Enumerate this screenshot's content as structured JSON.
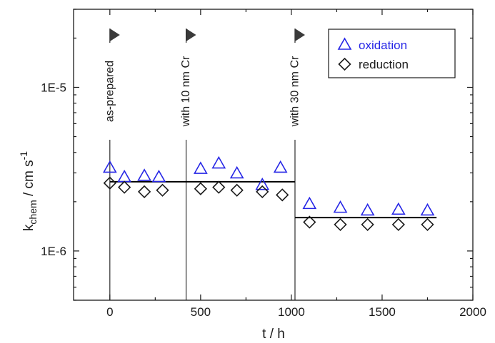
{
  "chart_data": {
    "type": "scatter",
    "title": "",
    "xlabel": "t / h",
    "ylabel_main": "k",
    "ylabel_sub": "chem",
    "ylabel_rest": " / cm s",
    "ylabel_sup": "-1",
    "xlim": [
      -200,
      2000
    ],
    "xticks": [
      0,
      500,
      1000,
      1500,
      2000
    ],
    "xtick_labels": [
      "0",
      "500",
      "1000",
      "1500",
      "2000"
    ],
    "yscale": "log",
    "ylim": [
      5e-07,
      3e-05
    ],
    "yticks": [
      1e-06,
      1e-05
    ],
    "ytick_labels": [
      "1E-6",
      "1E-5"
    ],
    "grid": false,
    "legend_position": "top-right",
    "series": [
      {
        "name": "oxidation",
        "marker": "triangle",
        "color": "#2626e6",
        "x": [
          0,
          80,
          190,
          270,
          500,
          600,
          700,
          840,
          940,
          1100,
          1270,
          1420,
          1590,
          1750
        ],
        "y": [
          3.25e-06,
          2.85e-06,
          2.9e-06,
          2.85e-06,
          3.2e-06,
          3.45e-06,
          3e-06,
          2.55e-06,
          3.25e-06,
          1.95e-06,
          1.85e-06,
          1.78e-06,
          1.8e-06,
          1.78e-06
        ]
      },
      {
        "name": "reduction",
        "marker": "diamond",
        "color": "#1a1a1a",
        "x": [
          0,
          80,
          190,
          290,
          500,
          600,
          700,
          840,
          950,
          1100,
          1270,
          1420,
          1590,
          1750
        ],
        "y": [
          2.6e-06,
          2.45e-06,
          2.3e-06,
          2.35e-06,
          2.4e-06,
          2.45e-06,
          2.35e-06,
          2.3e-06,
          2.2e-06,
          1.5e-06,
          1.45e-06,
          1.45e-06,
          1.45e-06,
          1.45e-06
        ]
      }
    ],
    "fit_lines": [
      {
        "x": [
          0,
          1020
        ],
        "y": [
          2.65e-06,
          2.65e-06
        ]
      },
      {
        "x": [
          1020,
          1800
        ],
        "y": [
          1.6e-06,
          1.6e-06
        ]
      }
    ],
    "stage_markers": [
      {
        "x": 0,
        "label": "as-prepared"
      },
      {
        "x": 420,
        "label": "with 10 nm Cr"
      },
      {
        "x": 1020,
        "label": "with 30 nm Cr"
      }
    ],
    "colors": {
      "oxidation": "#2626e6",
      "reduction": "#1a1a1a",
      "axis": "#1a1a1a"
    }
  }
}
